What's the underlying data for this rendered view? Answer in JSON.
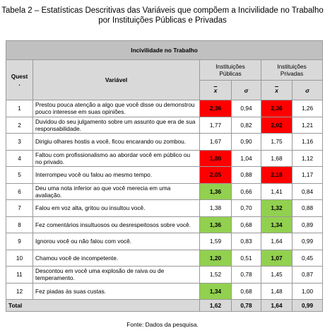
{
  "title": "Tabela 2 – Estatísticas Descritivas das Variáveis que compõem a Incivilidade no Trabalho por Instituições Públicas e Privadas",
  "table": {
    "band": "Incivilidade no Trabalho",
    "headers": {
      "quest": "Quest\n.",
      "variable": "Variável",
      "public": "Instituições\nPúblicas",
      "private": "Instituições\nPrivadas",
      "mean": "x",
      "sd": "σ"
    },
    "rows": [
      {
        "number": "1",
        "text": "Prestou pouca atenção a algo que você disse ou demonstrou pouco interesse em suas opiniões.",
        "cells": [
          {
            "value": "2,36",
            "fill": "#ff0000"
          },
          {
            "value": "0,94"
          },
          {
            "value": "2,36",
            "fill": "#ff0000"
          },
          {
            "value": "1,26"
          }
        ]
      },
      {
        "number": "2",
        "text": "Duvidou do seu julgamento sobre um assunto que era de sua responsabilidade.",
        "cells": [
          {
            "value": "1,77"
          },
          {
            "value": "0,82"
          },
          {
            "value": "2,02",
            "fill": "#ff0000"
          },
          {
            "value": "1,21"
          }
        ]
      },
      {
        "number": "3",
        "text": "Dirigiu olhares hostis a você, ficou encarando ou zombou.",
        "cells": [
          {
            "value": "1,67"
          },
          {
            "value": "0,90"
          },
          {
            "value": "1,75"
          },
          {
            "value": "1,16"
          }
        ]
      },
      {
        "number": "4",
        "text": "Faltou com profissionalismo ao abordar você em público ou no privado.",
        "cells": [
          {
            "value": "1,80",
            "fill": "#ff0000"
          },
          {
            "value": "1,04"
          },
          {
            "value": "1,68"
          },
          {
            "value": "1,12"
          }
        ]
      },
      {
        "number": "5",
        "text": "Interrompeu você ou falou ao mesmo tempo.",
        "cells": [
          {
            "value": "2,05",
            "fill": "#ff0000"
          },
          {
            "value": "0,88"
          },
          {
            "value": "2,18",
            "fill": "#ff0000"
          },
          {
            "value": "1,17"
          }
        ]
      },
      {
        "number": "6",
        "text": "Deu uma nota inferior ao que você merecia em uma avaliação.",
        "cells": [
          {
            "value": "1,36",
            "fill": "#92d050"
          },
          {
            "value": "0,66"
          },
          {
            "value": "1,41"
          },
          {
            "value": "0,84"
          }
        ]
      },
      {
        "number": "7",
        "text": "Falou em voz alta, gritou ou insultou você.",
        "cells": [
          {
            "value": "1,38"
          },
          {
            "value": "0,70"
          },
          {
            "value": "1,32",
            "fill": "#92d050"
          },
          {
            "value": "0,88"
          }
        ]
      },
      {
        "number": "8",
        "text": "Fez comentários insultuosos ou desrespeitosos sobre você.",
        "cells": [
          {
            "value": "1,36",
            "fill": "#92d050"
          },
          {
            "value": "0,68"
          },
          {
            "value": "1,34",
            "fill": "#92d050"
          },
          {
            "value": "0,89"
          }
        ]
      },
      {
        "number": "9",
        "text": "Ignorou você ou não falou com você.",
        "cells": [
          {
            "value": "1,59"
          },
          {
            "value": "0,83"
          },
          {
            "value": "1,64"
          },
          {
            "value": "0,99"
          }
        ]
      },
      {
        "number": "10",
        "text": "Chamou você de incompetente.",
        "cells": [
          {
            "value": "1,20",
            "fill": "#92d050"
          },
          {
            "value": "0,51"
          },
          {
            "value": "1,07",
            "fill": "#92d050"
          },
          {
            "value": "0,45"
          }
        ]
      },
      {
        "number": "11",
        "text": "Descontou em você uma explosão de raiva ou de temperamento.",
        "cells": [
          {
            "value": "1,52"
          },
          {
            "value": "0,78"
          },
          {
            "value": "1,45"
          },
          {
            "value": "0,87"
          }
        ]
      },
      {
        "number": "12",
        "text": "Fez piadas às suas custas.",
        "cells": [
          {
            "value": "1,34",
            "fill": "#92d050"
          },
          {
            "value": "0,68"
          },
          {
            "value": "1,48"
          },
          {
            "value": "1,00"
          }
        ]
      }
    ],
    "total": {
      "label": "Total",
      "cells": [
        "1,62",
        "0,78",
        "1,64",
        "0,99"
      ]
    }
  },
  "source": "Fonte: Dados da pesquisa."
}
